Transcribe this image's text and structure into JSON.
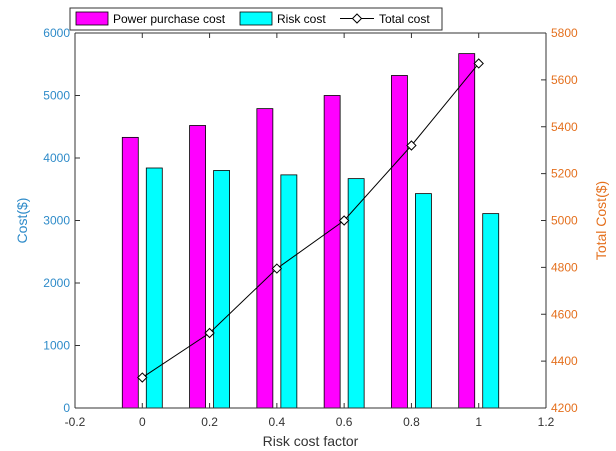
{
  "chart_data": {
    "type": "bar+line",
    "x": [
      0,
      0.2,
      0.4,
      0.6,
      0.8,
      1
    ],
    "xlabel": "Risk cost factor",
    "xlim": [
      -0.2,
      1.2
    ],
    "xticks": [
      "-0.2",
      "0",
      "0.2",
      "0.4",
      "0.6",
      "0.8",
      "1",
      "1.2"
    ],
    "ylabel_left": "Cost($)",
    "ylim_left": [
      0,
      6000
    ],
    "yticks_left": [
      "0",
      "1000",
      "2000",
      "3000",
      "4000",
      "5000",
      "6000"
    ],
    "ylabel_right": "Total Cost($)",
    "ylim_right": [
      4200,
      5800
    ],
    "yticks_right": [
      "4200",
      "4400",
      "4600",
      "4800",
      "5000",
      "5200",
      "5400",
      "5600",
      "5800"
    ],
    "series": [
      {
        "name": "Power purchase cost",
        "kind": "bar",
        "axis": "left",
        "color": "#ff00ff",
        "values": [
          4330,
          4520,
          4790,
          5000,
          5320,
          5670
        ]
      },
      {
        "name": "Risk cost",
        "kind": "bar",
        "axis": "left",
        "color": "#00ffff",
        "values": [
          3840,
          3800,
          3730,
          3670,
          3430,
          3110
        ]
      },
      {
        "name": "Total cost",
        "kind": "line",
        "axis": "right",
        "color": "#000000",
        "marker": "diamond",
        "values": [
          4330,
          4520,
          4795,
          5000,
          5320,
          5670
        ]
      }
    ],
    "legend_position": "top",
    "grid": false
  },
  "colors": {
    "left_axis": "#2e8bc9",
    "right_axis": "#e4701e",
    "axis": "#333333"
  }
}
